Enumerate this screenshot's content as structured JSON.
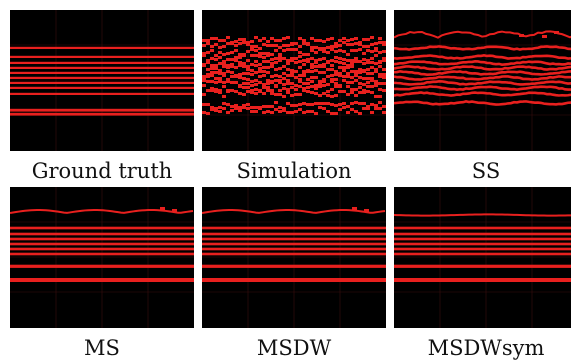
{
  "figure": {
    "panels": [
      {
        "id": "ground-truth",
        "caption": "Ground truth",
        "style": "clean"
      },
      {
        "id": "simulation",
        "caption": "Simulation",
        "style": "jagged"
      },
      {
        "id": "ss",
        "caption": "SS",
        "style": "wavy"
      },
      {
        "id": "ms",
        "caption": "MS",
        "style": "smooth"
      },
      {
        "id": "msdw",
        "caption": "MSDW",
        "style": "smooth"
      },
      {
        "id": "msdwsym",
        "caption": "MSDWsym",
        "style": "smooth2"
      }
    ],
    "colors": {
      "background": "#000000",
      "line": "#e8201e",
      "grid": "#3a0c0c"
    }
  }
}
